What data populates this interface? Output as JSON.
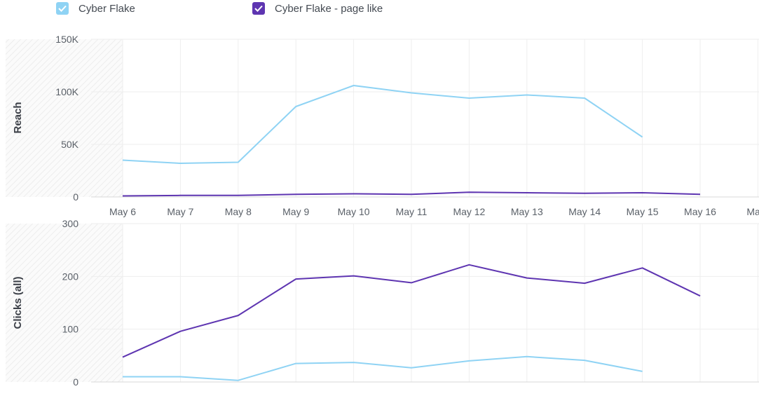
{
  "legend": {
    "items": [
      {
        "label": "Cyber Flake",
        "color": "#8fd3f4",
        "checked": true
      },
      {
        "label": "Cyber Flake - page like",
        "color": "#5e35b1",
        "checked": true
      }
    ]
  },
  "chart_data": [
    {
      "type": "line",
      "ylabel": "Reach",
      "ylim": [
        0,
        150000
      ],
      "yticks": [
        "0",
        "50K",
        "100K",
        "150K"
      ],
      "categories": [
        "May 6",
        "May 7",
        "May 8",
        "May 9",
        "May 10",
        "May 11",
        "May 12",
        "May 13",
        "May 14",
        "May 15",
        "May 16",
        "May"
      ],
      "grid": true,
      "series": [
        {
          "name": "Cyber Flake",
          "color": "#8fd3f4",
          "values": [
            35000,
            32000,
            33000,
            86000,
            106000,
            99000,
            94000,
            97000,
            94000,
            57000,
            null,
            null
          ]
        },
        {
          "name": "Cyber Flake - page like",
          "color": "#5e35b1",
          "values": [
            1000,
            1500,
            1500,
            2500,
            3000,
            2500,
            4500,
            4000,
            3500,
            4000,
            2500,
            null
          ]
        }
      ]
    },
    {
      "type": "line",
      "ylabel": "Clicks (all)",
      "ylim": [
        0,
        300
      ],
      "yticks": [
        "0",
        "100",
        "200",
        "300"
      ],
      "categories": [
        "May 6",
        "May 7",
        "May 8",
        "May 9",
        "May 10",
        "May 11",
        "May 12",
        "May 13",
        "May 14",
        "May 15",
        "May 16",
        "May"
      ],
      "grid": true,
      "series": [
        {
          "name": "Cyber Flake",
          "color": "#8fd3f4",
          "values": [
            10,
            10,
            3,
            35,
            37,
            27,
            40,
            48,
            41,
            20,
            null,
            null
          ]
        },
        {
          "name": "Cyber Flake - page like",
          "color": "#5e35b1",
          "values": [
            47,
            96,
            126,
            195,
            201,
            188,
            222,
            197,
            187,
            216,
            163,
            null
          ]
        }
      ]
    }
  ]
}
